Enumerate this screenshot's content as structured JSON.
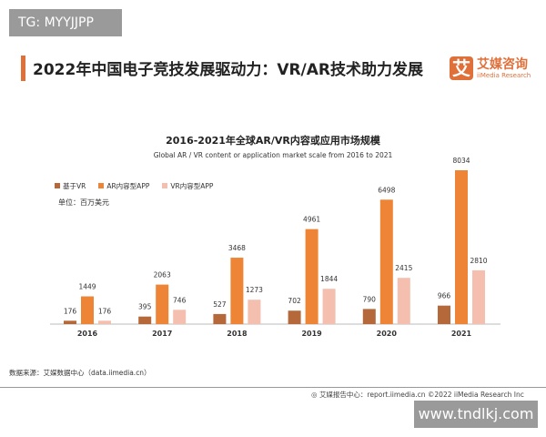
{
  "watermark_top": "TG: MYYJJPP",
  "watermark_bottom": "www.tndlkj.com",
  "header": {
    "title": "2022年中国电子竞技发展驱动力：VR/AR技术助力发展",
    "logo_glyph": "艾",
    "logo_cn": "艾媒咨询",
    "logo_en": "iiMedia Research"
  },
  "source": "数据来源：艾媒数据中心（data.iimedia.cn）",
  "footer": "艾媒报告中心：report.iimedia.cn   ©2022  iiMedia Research  Inc",
  "colors": {
    "accent": "#e0703a",
    "series": [
      "#b5693a",
      "#ee8536",
      "#f4bfae"
    ]
  },
  "chart_data": {
    "type": "bar",
    "title": "2016-2021年全球AR/VR内容或应用市场规模",
    "subtitle": "Global AR / VR content or application market scale from 2016 to 2021",
    "unit": "单位：百万美元",
    "legend_position": "top-left",
    "grid": false,
    "categories": [
      "2016",
      "2017",
      "2018",
      "2019",
      "2020",
      "2021"
    ],
    "series": [
      {
        "name": "基于VR",
        "values": [
          176,
          395,
          527,
          702,
          790,
          966
        ]
      },
      {
        "name": "AR内容型APP",
        "values": [
          1449,
          2063,
          3468,
          4961,
          6498,
          8034
        ]
      },
      {
        "name": "VR内容型APP",
        "values": [
          176,
          746,
          1273,
          1844,
          2415,
          2810
        ]
      }
    ]
  }
}
